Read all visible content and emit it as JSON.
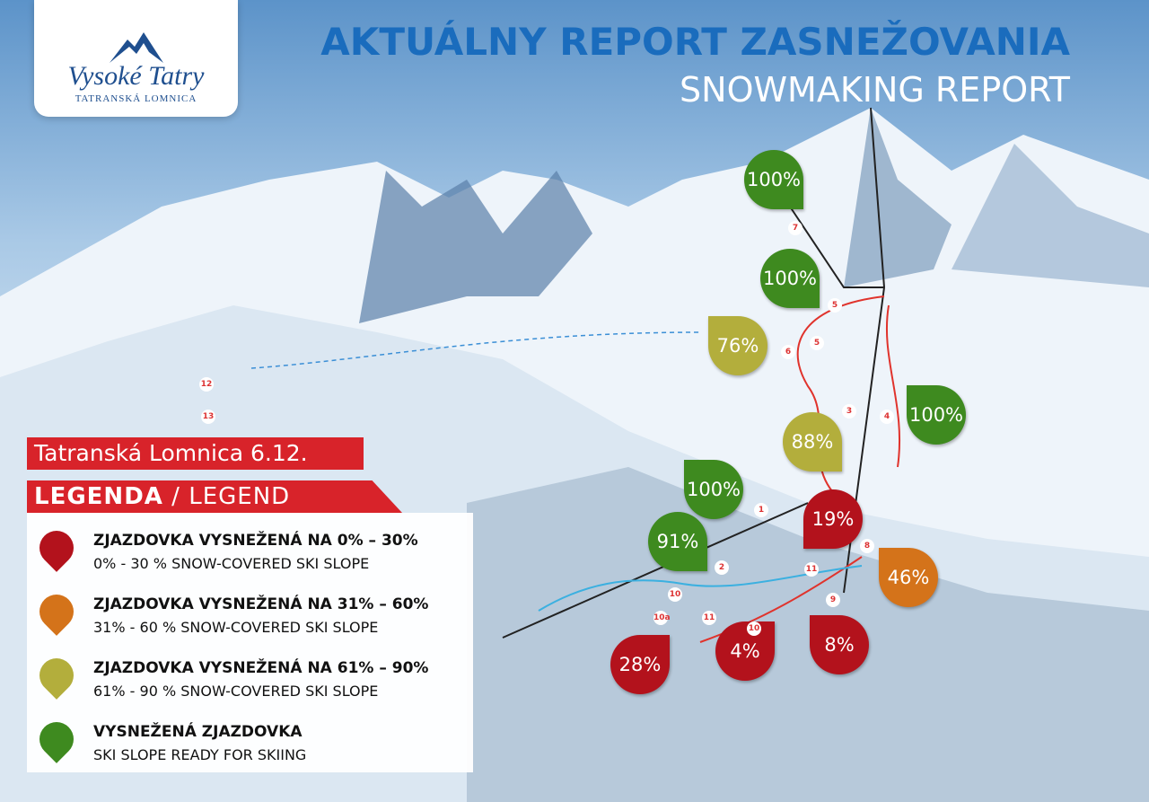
{
  "logo": {
    "name": "Vysoké Tatry",
    "place": "TATRANSKÁ LOMNICA"
  },
  "header": {
    "title": "AKTUÁLNY REPORT ZASNEŽOVANIA",
    "subtitle": "SNOWMAKING REPORT"
  },
  "location_banner": "Tatranská Lomnica  6.12.",
  "legend": {
    "title": "LEGENDA",
    "separator": "/",
    "title_en": "LEGEND",
    "items": [
      {
        "color": "#b3121c",
        "label": "ZJAZDOVKA VYSNEŽENÁ NA 0% – 30%",
        "label_en": "0% - 30 % SNOW-COVERED SKI SLOPE"
      },
      {
        "color": "#d4731a",
        "label": "ZJAZDOVKA VYSNEŽENÁ NA 31% – 60%",
        "label_en": "31% - 60 % SNOW-COVERED SKI SLOPE"
      },
      {
        "color": "#b3ae3c",
        "label": "ZJAZDOVKA VYSNEŽENÁ NA 61% – 90%",
        "label_en": "61% - 90 % SNOW-COVERED SKI SLOPE"
      },
      {
        "color": "#3e8a1f",
        "label": "VYSNEŽENÁ ZJAZDOVKA",
        "label_en": "SKI SLOPE READY FOR SKIING"
      }
    ]
  },
  "markers": [
    {
      "label": "100%",
      "color": "#3e8a1f"
    },
    {
      "label": "100%",
      "color": "#3e8a1f"
    },
    {
      "label": "76%",
      "color": "#b3ae3c"
    },
    {
      "label": "100%",
      "color": "#3e8a1f"
    },
    {
      "label": "88%",
      "color": "#b3ae3c"
    },
    {
      "label": "100%",
      "color": "#3e8a1f"
    },
    {
      "label": "19%",
      "color": "#b3121c"
    },
    {
      "label": "91%",
      "color": "#3e8a1f"
    },
    {
      "label": "46%",
      "color": "#d4731a"
    },
    {
      "label": "28%",
      "color": "#b3121c"
    },
    {
      "label": "4%",
      "color": "#b3121c"
    },
    {
      "label": "8%",
      "color": "#b3121c"
    }
  ],
  "trail_numbers": [
    "7",
    "5",
    "6",
    "5",
    "3",
    "4",
    "8",
    "11",
    "9",
    "10",
    "11",
    "10",
    "1",
    "2",
    "12",
    "13",
    "10a"
  ]
}
